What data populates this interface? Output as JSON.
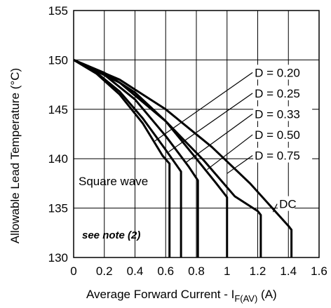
{
  "chart_data": {
    "type": "line",
    "title": "",
    "xlabel": "Average Forward Current - I",
    "xlabel_sub": "F(AV)",
    "xlabel_suffix": " (A)",
    "ylabel": "Allowable Lead Temperature (°C)",
    "xlim": [
      0,
      1.6
    ],
    "ylim": [
      130,
      155
    ],
    "x_ticks": [
      "0",
      "0.2",
      "0.4",
      "0.6",
      "0.8",
      "1",
      "1.2",
      "1.4",
      "1.6"
    ],
    "y_ticks": [
      "130",
      "135",
      "140",
      "145",
      "150",
      "155"
    ],
    "grid": true,
    "annotations": {
      "square_wave": "Square wave",
      "note": "see note (2)"
    },
    "series": [
      {
        "name": "D = 0.20",
        "x": [
          0,
          0.15,
          0.3,
          0.45,
          0.58,
          0.625,
          0.625
        ],
        "y": [
          150,
          148.6,
          146.5,
          143.6,
          140.3,
          139.5,
          130
        ]
      },
      {
        "name": "D = 0.25",
        "x": [
          0,
          0.15,
          0.3,
          0.45,
          0.6,
          0.7,
          0.7
        ],
        "y": [
          150,
          148.7,
          146.8,
          144.1,
          140.9,
          138.7,
          130
        ]
      },
      {
        "name": "D = 0.33",
        "x": [
          0,
          0.2,
          0.4,
          0.6,
          0.75,
          0.81,
          0.81
        ],
        "y": [
          150,
          148.5,
          146,
          142.3,
          139.2,
          137.8,
          130
        ]
      },
      {
        "name": "D = 0.50",
        "x": [
          0,
          0.2,
          0.4,
          0.6,
          0.8,
          0.93,
          1.0,
          1.0
        ],
        "y": [
          150,
          148.7,
          146.7,
          143.8,
          140,
          137.5,
          136.1,
          130
        ]
      },
      {
        "name": "D = 0.75",
        "x": [
          0,
          0.3,
          0.6,
          0.85,
          1.05,
          1.2,
          1.22,
          1.22
        ],
        "y": [
          150,
          147.7,
          143.8,
          139.8,
          136.2,
          134.7,
          134.3,
          130
        ]
      },
      {
        "name": "DC",
        "x": [
          0,
          0.3,
          0.6,
          0.9,
          1.15,
          1.4,
          1.42,
          1.42
        ],
        "y": [
          150,
          148,
          145,
          141.2,
          137.5,
          133.2,
          132.8,
          130
        ]
      }
    ],
    "label_leaders": [
      {
        "label": "D = 0.20",
        "text_x": 1.18,
        "text_y": 148.3,
        "line_to_x": 0.53,
        "line_to_y": 141.8
      },
      {
        "label": "D = 0.25",
        "text_x": 1.18,
        "text_y": 146.2,
        "line_to_x": 0.62,
        "line_to_y": 140.7
      },
      {
        "label": "D = 0.33",
        "text_x": 1.18,
        "text_y": 144.1,
        "line_to_x": 0.73,
        "line_to_y": 139.6
      },
      {
        "label": "D = 0.50",
        "text_x": 1.18,
        "text_y": 142.0,
        "line_to_x": 0.87,
        "line_to_y": 138.9
      },
      {
        "label": "D = 0.75",
        "text_x": 1.18,
        "text_y": 139.9,
        "line_to_x": 1.0,
        "line_to_y": 138.5
      },
      {
        "label": "DC",
        "text_x": 1.34,
        "text_y": 135.0,
        "line_to_x": 1.3,
        "line_to_y": 134.6
      }
    ]
  }
}
